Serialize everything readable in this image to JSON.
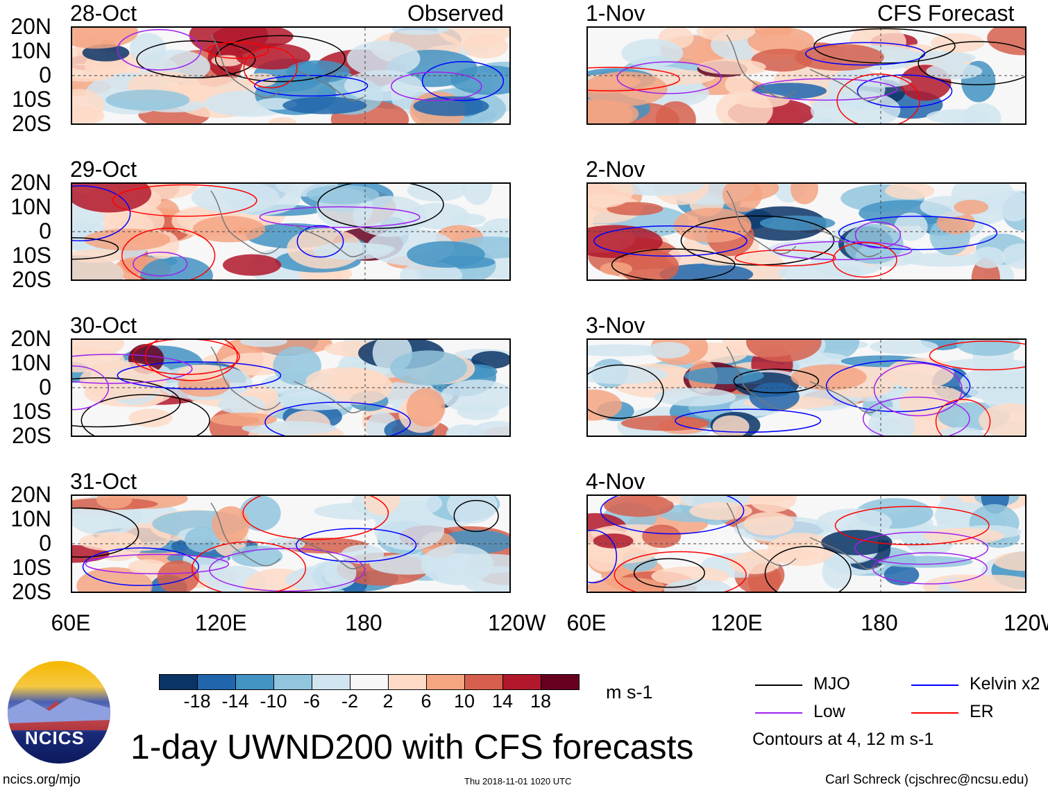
{
  "title": "1-day UWND200 with CFS forecasts",
  "left_header": "Observed",
  "right_header": "CFS Forecast",
  "footer": {
    "left": "ncics.org/mjo",
    "center": "Thu 2018-11-01 1020 UTC",
    "right": "Carl Schreck (cjschrec@ncsu.edu)"
  },
  "logo_text": "NCICS",
  "colorbar": {
    "unit": "m s-1",
    "ticks": [
      "-18",
      "-14",
      "-10",
      "-6",
      "-2",
      "2",
      "6",
      "10",
      "14",
      "18"
    ],
    "colors": [
      "#0b3466",
      "#2166ac",
      "#4393c3",
      "#92c5de",
      "#d1e5f0",
      "#f7f7f7",
      "#fddbc7",
      "#f4a582",
      "#d6604d",
      "#b2182b",
      "#67001f"
    ]
  },
  "legend": {
    "items": [
      {
        "label": "MJO",
        "color": "#000000"
      },
      {
        "label": "Kelvin x2",
        "color": "#0000ff"
      },
      {
        "label": "Low",
        "color": "#a020f0"
      },
      {
        "label": "ER",
        "color": "#ff0000"
      }
    ],
    "note": "Contours at 4, 12 m s-1"
  },
  "chart_data": {
    "type": "heatmap",
    "variable": "200-hPa zonal wind anomaly",
    "unit": "m s-1",
    "lat_ticks": [
      "20N",
      "10N",
      "0",
      "10S",
      "20S"
    ],
    "lon_ticks": [
      "60E",
      "120E",
      "180",
      "120W"
    ],
    "panels": [
      {
        "date": "28-Oct",
        "type": "observed"
      },
      {
        "date": "29-Oct",
        "type": "observed"
      },
      {
        "date": "30-Oct",
        "type": "observed"
      },
      {
        "date": "31-Oct",
        "type": "observed"
      },
      {
        "date": "1-Nov",
        "type": "forecast"
      },
      {
        "date": "2-Nov",
        "type": "forecast"
      },
      {
        "date": "3-Nov",
        "type": "forecast"
      },
      {
        "date": "4-Nov",
        "type": "forecast"
      }
    ]
  }
}
